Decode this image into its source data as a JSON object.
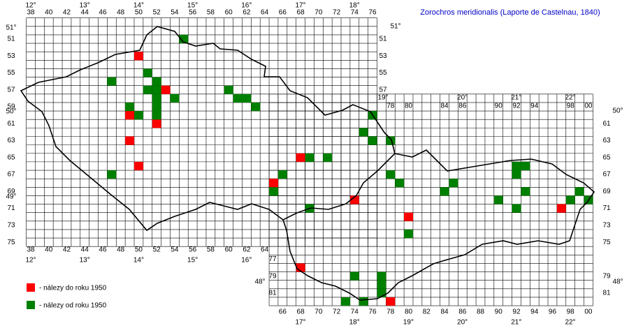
{
  "title": "Zorochros meridionalis (Laporte de Castelnau, 1840)",
  "legend": [
    {
      "label": "- nálezy do roku 1950",
      "color": "#ff0000"
    },
    {
      "label": "- nálezy od roku 1950",
      "color": "#008000"
    }
  ],
  "grid_labels": {
    "top_columns": [
      "38",
      "40",
      "42",
      "44",
      "46",
      "48",
      "50",
      "52",
      "54",
      "56",
      "58",
      "60",
      "62",
      "64",
      "66",
      "68",
      "70",
      "72",
      "74",
      "76"
    ],
    "top_columns_east": [
      "78",
      "80",
      "84",
      "86",
      "90",
      "92",
      "94",
      "98",
      "00"
    ],
    "bottom_columns_west": [
      "38",
      "40",
      "42",
      "44",
      "46",
      "48",
      "50",
      "52",
      "54",
      "56",
      "58",
      "60",
      "62",
      "64"
    ],
    "bottom_columns_east": [
      "66",
      "68",
      "70",
      "72",
      "74",
      "76",
      "78",
      "80",
      "82",
      "84",
      "86",
      "88",
      "90",
      "92",
      "94",
      "96",
      "98",
      "00"
    ],
    "left_rows_west": [
      "51",
      "53",
      "55",
      "57",
      "59",
      "61",
      "63",
      "65",
      "67",
      "69",
      "71",
      "73",
      "75"
    ],
    "right_rows_west": [
      "51",
      "53",
      "55",
      "57"
    ],
    "left_rows_east": [
      "77",
      "79",
      "81"
    ],
    "right_rows_east": [
      "61",
      "63",
      "65",
      "67",
      "69",
      "71",
      "73",
      "75",
      "79",
      "81"
    ]
  },
  "degrees": {
    "lon_top_west": [
      "12°",
      "13°",
      "14°",
      "15°",
      "16°",
      "17°",
      "18°"
    ],
    "lon_top_east": [
      "19°",
      "20°",
      "21°",
      "22°"
    ],
    "lon_bottom_west": [
      "12°",
      "13°",
      "14°",
      "15°",
      "16°"
    ],
    "lon_bottom_east": [
      "17°",
      "18°",
      "19°",
      "20°",
      "21°",
      "22°"
    ],
    "lat_left": [
      "51°",
      "50°",
      "49°",
      "48°"
    ],
    "lat_right": [
      "51°",
      "50°",
      "48°"
    ]
  },
  "records": {
    "before_1950": [
      {
        "col": 50,
        "row": 53
      },
      {
        "col": 53,
        "row": 57
      },
      {
        "col": 49,
        "row": 60
      },
      {
        "col": 52,
        "row": 61
      },
      {
        "col": 49,
        "row": 63
      },
      {
        "col": 50,
        "row": 66
      },
      {
        "col": 68,
        "row": 65
      },
      {
        "col": 65,
        "row": 68
      },
      {
        "col": 74,
        "row": 70
      },
      {
        "col": 80,
        "row": 72
      },
      {
        "col": 97,
        "row": 71
      },
      {
        "col": 68,
        "row": 78
      },
      {
        "col": 78,
        "row": 82
      }
    ],
    "since_1950": [
      {
        "col": 55,
        "row": 51
      },
      {
        "col": 51,
        "row": 55
      },
      {
        "col": 47,
        "row": 56
      },
      {
        "col": 51,
        "row": 57
      },
      {
        "col": 52,
        "row": 56
      },
      {
        "col": 52,
        "row": 57
      },
      {
        "col": 52,
        "row": 58
      },
      {
        "col": 52,
        "row": 59
      },
      {
        "col": 52,
        "row": 60
      },
      {
        "col": 54,
        "row": 58
      },
      {
        "col": 49,
        "row": 59
      },
      {
        "col": 50,
        "row": 60
      },
      {
        "col": 60,
        "row": 57
      },
      {
        "col": 61,
        "row": 58
      },
      {
        "col": 62,
        "row": 58
      },
      {
        "col": 63,
        "row": 59
      },
      {
        "col": 47,
        "row": 67
      },
      {
        "col": 66,
        "row": 67
      },
      {
        "col": 65,
        "row": 69
      },
      {
        "col": 69,
        "row": 65
      },
      {
        "col": 71,
        "row": 65
      },
      {
        "col": 76,
        "row": 60
      },
      {
        "col": 75,
        "row": 62
      },
      {
        "col": 76,
        "row": 63
      },
      {
        "col": 78,
        "row": 63
      },
      {
        "col": 78,
        "row": 67
      },
      {
        "col": 79,
        "row": 68
      },
      {
        "col": 69,
        "row": 71
      },
      {
        "col": 80,
        "row": 74
      },
      {
        "col": 84,
        "row": 69
      },
      {
        "col": 85,
        "row": 68
      },
      {
        "col": 90,
        "row": 70
      },
      {
        "col": 92,
        "row": 66
      },
      {
        "col": 93,
        "row": 66
      },
      {
        "col": 92,
        "row": 67
      },
      {
        "col": 93,
        "row": 69
      },
      {
        "col": 92,
        "row": 71
      },
      {
        "col": 99,
        "row": 69
      },
      {
        "col": 98,
        "row": 70
      },
      {
        "col": 100,
        "row": 70
      },
      {
        "col": 74,
        "row": 79
      },
      {
        "col": 77,
        "row": 79
      },
      {
        "col": 77,
        "row": 80
      },
      {
        "col": 77,
        "row": 81
      },
      {
        "col": 73,
        "row": 82
      },
      {
        "col": 75,
        "row": 82
      }
    ]
  }
}
